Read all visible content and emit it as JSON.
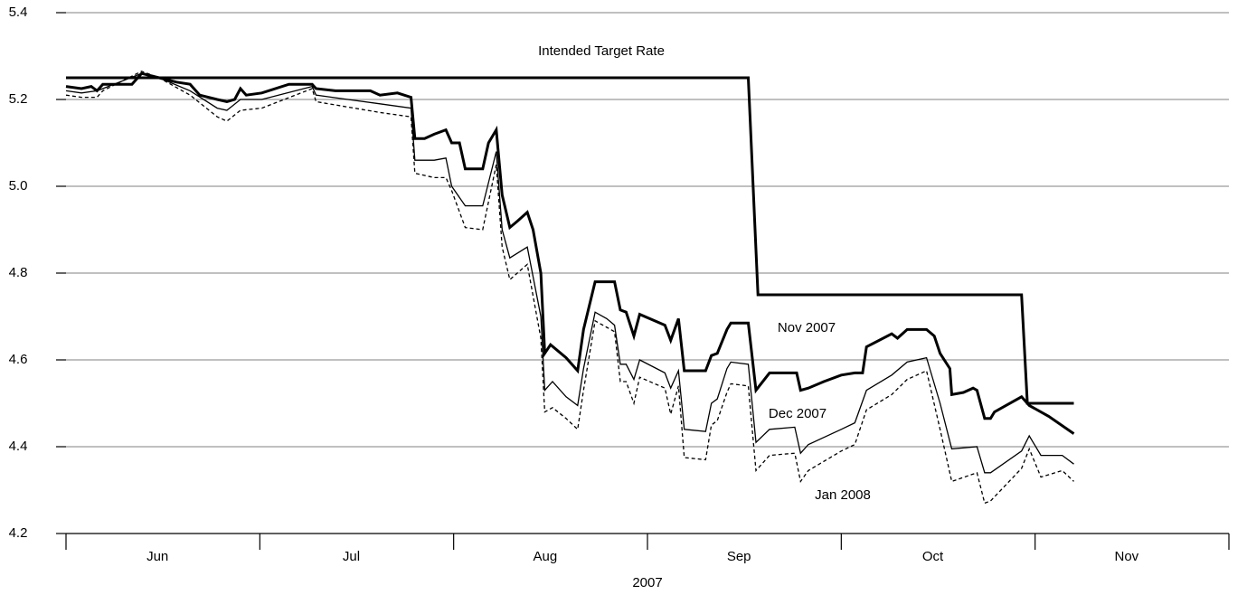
{
  "chart_data": {
    "type": "line",
    "xlabel": "2007",
    "xlim": [
      0,
      6
    ],
    "xticks": [
      0,
      1,
      2,
      3,
      4,
      5,
      6
    ],
    "month_labels": [
      {
        "value": 0.5,
        "label": "Jun"
      },
      {
        "value": 1.5,
        "label": "Jul"
      },
      {
        "value": 2.5,
        "label": "Aug"
      },
      {
        "value": 3.5,
        "label": "Sep"
      },
      {
        "value": 4.5,
        "label": "Oct"
      },
      {
        "value": 5.5,
        "label": "Nov"
      }
    ],
    "ylim": [
      4.2,
      5.4
    ],
    "yticks": [
      4.2,
      4.4,
      4.6,
      4.8,
      {
        "value": 5,
        "label": "5.0"
      },
      5.2,
      5.4
    ],
    "grid": true,
    "series": [
      {
        "name": "Intended Target Rate",
        "color": "#000000",
        "line_style": "solid",
        "line_weight": "thick",
        "x": [
          0,
          3.52,
          3.57,
          4.93,
          4.96,
          5.2
        ],
        "values": [
          5.25,
          5.25,
          4.75,
          4.75,
          4.5,
          4.5
        ]
      },
      {
        "name": "Nov 2007",
        "color": "#000000",
        "line_style": "solid",
        "line_weight": "thick",
        "x": [
          0,
          0.08,
          0.13,
          0.16,
          0.19,
          0.27,
          0.34,
          0.39,
          0.48,
          0.57,
          0.64,
          0.69,
          0.78,
          0.83,
          0.87,
          0.9,
          0.93,
          1.01,
          1.15,
          1.27,
          1.29,
          1.39,
          1.57,
          1.62,
          1.71,
          1.78,
          1.8,
          1.85,
          1.9,
          1.96,
          1.99,
          2.03,
          2.06,
          2.15,
          2.18,
          2.22,
          2.25,
          2.29,
          2.33,
          2.38,
          2.41,
          2.45,
          2.47,
          2.5,
          2.58,
          2.64,
          2.67,
          2.73,
          2.83,
          2.86,
          2.89,
          2.93,
          2.96,
          3.09,
          3.12,
          3.16,
          3.19,
          3.3,
          3.33,
          3.36,
          3.41,
          3.43,
          3.52,
          3.56,
          3.63,
          3.77,
          3.79,
          3.83,
          3.91,
          4.0,
          4.07,
          4.11,
          4.13,
          4.26,
          4.29,
          4.34,
          4.44,
          4.48,
          4.51,
          4.56,
          4.57,
          4.63,
          4.68,
          4.7,
          4.74,
          4.77,
          4.79,
          4.83,
          4.93,
          4.97,
          5.07,
          5.2
        ],
        "values": [
          5.23,
          5.225,
          5.23,
          5.22,
          5.235,
          5.235,
          5.235,
          5.26,
          5.25,
          5.24,
          5.235,
          5.21,
          5.2,
          5.195,
          5.2,
          5.225,
          5.21,
          5.215,
          5.235,
          5.235,
          5.225,
          5.22,
          5.22,
          5.21,
          5.215,
          5.205,
          5.11,
          5.11,
          5.12,
          5.13,
          5.1,
          5.1,
          5.04,
          5.04,
          5.1,
          5.13,
          4.98,
          4.905,
          4.92,
          4.94,
          4.9,
          4.8,
          4.615,
          4.635,
          4.605,
          4.575,
          4.67,
          4.78,
          4.78,
          4.715,
          4.71,
          4.655,
          4.705,
          4.68,
          4.645,
          4.695,
          4.575,
          4.575,
          4.61,
          4.615,
          4.67,
          4.685,
          4.685,
          4.53,
          4.57,
          4.57,
          4.53,
          4.535,
          4.55,
          4.565,
          4.57,
          4.57,
          4.63,
          4.66,
          4.65,
          4.67,
          4.67,
          4.655,
          4.615,
          4.58,
          4.52,
          4.525,
          4.535,
          4.53,
          4.465,
          4.465,
          4.48,
          4.49,
          4.515,
          4.495,
          4.47,
          4.43
        ]
      },
      {
        "name": "Dec 2007",
        "color": "#000000",
        "line_style": "solid",
        "line_weight": "thin",
        "x": [
          0,
          0.08,
          0.16,
          0.19,
          0.39,
          0.48,
          0.64,
          0.78,
          0.83,
          0.9,
          1.01,
          1.27,
          1.29,
          1.62,
          1.78,
          1.8,
          1.9,
          1.96,
          1.99,
          2.06,
          2.15,
          2.22,
          2.25,
          2.29,
          2.38,
          2.45,
          2.47,
          2.51,
          2.58,
          2.64,
          2.67,
          2.73,
          2.79,
          2.83,
          2.86,
          2.89,
          2.93,
          2.96,
          3.09,
          3.12,
          3.16,
          3.19,
          3.3,
          3.33,
          3.36,
          3.41,
          3.43,
          3.52,
          3.56,
          3.63,
          3.76,
          3.79,
          3.83,
          4.0,
          4.07,
          4.13,
          4.26,
          4.34,
          4.44,
          4.51,
          4.57,
          4.7,
          4.74,
          4.77,
          4.93,
          4.97,
          5.03,
          5.14,
          5.2
        ],
        "values": [
          5.22,
          5.215,
          5.22,
          5.225,
          5.26,
          5.25,
          5.22,
          5.18,
          5.175,
          5.2,
          5.2,
          5.23,
          5.21,
          5.19,
          5.18,
          5.06,
          5.06,
          5.065,
          5.0,
          4.955,
          4.955,
          5.08,
          4.9,
          4.835,
          4.86,
          4.7,
          4.53,
          4.55,
          4.515,
          4.495,
          4.58,
          4.71,
          4.695,
          4.68,
          4.59,
          4.59,
          4.555,
          4.6,
          4.57,
          4.535,
          4.575,
          4.44,
          4.435,
          4.5,
          4.51,
          4.58,
          4.595,
          4.59,
          4.41,
          4.44,
          4.445,
          4.385,
          4.405,
          4.44,
          4.455,
          4.53,
          4.565,
          4.595,
          4.605,
          4.5,
          4.395,
          4.4,
          4.34,
          4.34,
          4.39,
          4.425,
          4.38,
          4.38,
          4.36
        ]
      },
      {
        "name": "Jan 2008",
        "color": "#000000",
        "line_style": "dashed",
        "line_weight": "thin",
        "x": [
          0,
          0.08,
          0.16,
          0.19,
          0.39,
          0.48,
          0.64,
          0.78,
          0.83,
          0.9,
          1.01,
          1.27,
          1.29,
          1.62,
          1.78,
          1.8,
          1.9,
          1.96,
          1.99,
          2.06,
          2.15,
          2.22,
          2.25,
          2.29,
          2.38,
          2.45,
          2.47,
          2.51,
          2.58,
          2.64,
          2.67,
          2.73,
          2.79,
          2.83,
          2.86,
          2.89,
          2.93,
          2.96,
          3.09,
          3.12,
          3.16,
          3.19,
          3.3,
          3.33,
          3.36,
          3.41,
          3.43,
          3.52,
          3.56,
          3.63,
          3.76,
          3.79,
          3.83,
          4.0,
          4.07,
          4.13,
          4.26,
          4.34,
          4.44,
          4.51,
          4.57,
          4.7,
          4.74,
          4.77,
          4.93,
          4.97,
          5.03,
          5.14,
          5.2
        ],
        "values": [
          5.21,
          5.205,
          5.205,
          5.22,
          5.265,
          5.25,
          5.21,
          5.16,
          5.15,
          5.175,
          5.18,
          5.225,
          5.195,
          5.17,
          5.16,
          5.03,
          5.02,
          5.02,
          4.99,
          4.905,
          4.9,
          5.05,
          4.86,
          4.785,
          4.82,
          4.65,
          4.48,
          4.49,
          4.465,
          4.44,
          4.53,
          4.69,
          4.675,
          4.665,
          4.55,
          4.55,
          4.5,
          4.56,
          4.535,
          4.475,
          4.54,
          4.375,
          4.37,
          4.45,
          4.46,
          4.525,
          4.545,
          4.54,
          4.345,
          4.38,
          4.385,
          4.32,
          4.345,
          4.39,
          4.405,
          4.485,
          4.52,
          4.555,
          4.575,
          4.44,
          4.32,
          4.34,
          4.27,
          4.275,
          4.35,
          4.395,
          4.33,
          4.345,
          4.32
        ]
      }
    ]
  }
}
